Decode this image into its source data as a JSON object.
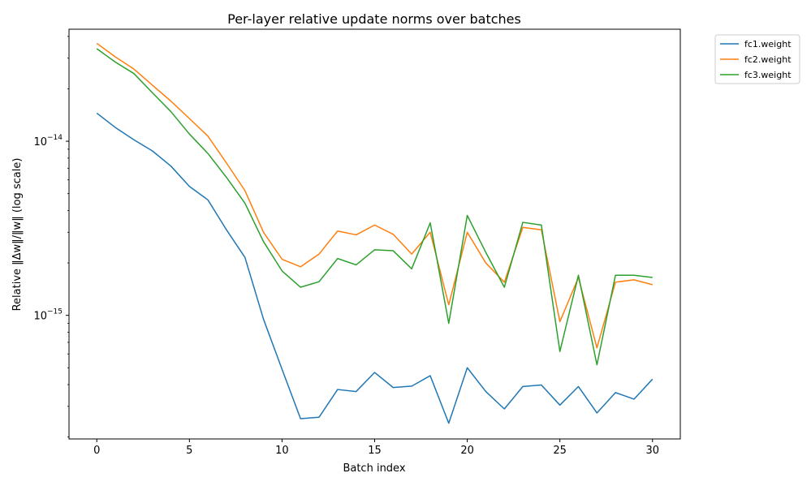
{
  "chart_data": {
    "type": "line",
    "title": "Per-layer relative update norms over batches",
    "xlabel": "Batch index",
    "ylabel": "Relative ‖Δw‖/‖w‖ (log scale)",
    "yscale": "log",
    "xlim": [
      -1.5,
      31.5
    ],
    "ylim": [
      1.95e-16,
      4.4e-14
    ],
    "x_ticks": [
      0,
      5,
      10,
      15,
      20,
      25,
      30
    ],
    "x_tick_labels": [
      "0",
      "5",
      "10",
      "15",
      "20",
      "25",
      "30"
    ],
    "y_major_ticks": [
      1e-15,
      1e-14
    ],
    "y_major_tick_labels": [
      {
        "base": "10",
        "exp": "−15"
      },
      {
        "base": "10",
        "exp": "−14"
      }
    ],
    "grid": false,
    "legend_position": "outside-top-right",
    "x": [
      0,
      1,
      2,
      3,
      4,
      5,
      6,
      7,
      8,
      9,
      10,
      11,
      12,
      13,
      14,
      15,
      16,
      17,
      18,
      19,
      20,
      21,
      22,
      23,
      24,
      25,
      26,
      27,
      28,
      29,
      30
    ],
    "series": [
      {
        "name": "fc1.weight",
        "color": "#1f77b4",
        "values": [
          1.45e-14,
          1.2e-14,
          1.02e-14,
          8.8e-15,
          7.2e-15,
          5.5e-15,
          4.6e-15,
          3.1e-15,
          2.15e-15,
          9.5e-16,
          4.9e-16,
          2.55e-16,
          2.6e-16,
          3.75e-16,
          3.65e-16,
          4.7e-16,
          3.85e-16,
          3.92e-16,
          4.5e-16,
          2.4e-16,
          5e-16,
          3.65e-16,
          2.9e-16,
          3.9e-16,
          3.98e-16,
          3.05e-16,
          3.9e-16,
          2.75e-16,
          3.6e-16,
          3.3e-16,
          4.3e-16
        ]
      },
      {
        "name": "fc2.weight",
        "color": "#ff7f0e",
        "values": [
          3.65e-14,
          3.05e-14,
          2.6e-14,
          2.1e-14,
          1.7e-14,
          1.35e-14,
          1.07e-14,
          7.5e-15,
          5.2e-15,
          3e-15,
          2.1e-15,
          1.9e-15,
          2.25e-15,
          3.05e-15,
          2.9e-15,
          3.3e-15,
          2.92e-15,
          2.25e-15,
          3e-15,
          1.15e-15,
          3e-15,
          2e-15,
          1.55e-15,
          3.2e-15,
          3.1e-15,
          9.2e-16,
          1.65e-15,
          6.5e-16,
          1.55e-15,
          1.6e-15,
          1.5e-15
        ]
      },
      {
        "name": "fc3.weight",
        "color": "#2ca02c",
        "values": [
          3.4e-14,
          2.85e-14,
          2.45e-14,
          1.9e-14,
          1.48e-14,
          1.1e-14,
          8.5e-15,
          6.2e-15,
          4.4e-15,
          2.65e-15,
          1.8e-15,
          1.45e-15,
          1.56e-15,
          2.12e-15,
          1.95e-15,
          2.38e-15,
          2.35e-15,
          1.85e-15,
          3.4e-15,
          9e-16,
          3.75e-15,
          2.3e-15,
          1.45e-15,
          3.42e-15,
          3.3e-15,
          6.2e-16,
          1.7e-15,
          5.2e-16,
          1.7e-15,
          1.7e-15,
          1.65e-15
        ]
      }
    ]
  }
}
